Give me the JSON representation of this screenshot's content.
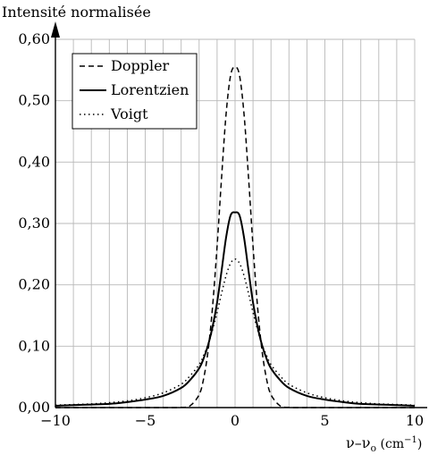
{
  "chart_data": {
    "type": "line",
    "ylabel": "Intensité normalisée",
    "xlabel": "ν–ν",
    "xlabel_sub": "o",
    "xlabel_unit": " (cm",
    "xlabel_exp": "−1",
    "xlabel_close": ")",
    "xlim": [
      -10,
      10
    ],
    "ylim": [
      0,
      0.6
    ],
    "xticks": [
      -10,
      -5,
      0,
      5,
      10
    ],
    "xtick_labels": [
      "−10",
      "−5",
      "0",
      "5",
      "10"
    ],
    "yticks": [
      0,
      0.1,
      0.2,
      0.3,
      0.4,
      0.5,
      0.6
    ],
    "ytick_labels": [
      "0,00",
      "0,10",
      "0,20",
      "0,30",
      "0,40",
      "0,50",
      "0,60"
    ],
    "grid": true,
    "legend_position": "top-left",
    "x": [
      -10,
      -9,
      -8,
      -7,
      -6,
      -5,
      -4,
      -3,
      -2.5,
      -2,
      -1.75,
      -1.5,
      -1.25,
      -1,
      -0.75,
      -0.5,
      -0.25,
      0,
      0.25,
      0.5,
      0.75,
      1,
      1.25,
      1.5,
      1.75,
      2,
      2.5,
      3,
      4,
      5,
      6,
      7,
      8,
      9,
      10
    ],
    "series": [
      {
        "name": "Doppler",
        "style": "dashed",
        "values": [
          0,
          0,
          0,
          0,
          0,
          0,
          0,
          0.0003,
          0.003,
          0.021,
          0.047,
          0.093,
          0.165,
          0.263,
          0.375,
          0.478,
          0.541,
          0.555,
          0.541,
          0.478,
          0.375,
          0.263,
          0.165,
          0.093,
          0.047,
          0.021,
          0.003,
          0.0003,
          0,
          0,
          0,
          0,
          0,
          0,
          0
        ]
      },
      {
        "name": "Lorentzien",
        "style": "solid",
        "values": [
          0.003,
          0.004,
          0.005,
          0.006,
          0.009,
          0.013,
          0.019,
          0.032,
          0.045,
          0.064,
          0.08,
          0.102,
          0.132,
          0.171,
          0.223,
          0.277,
          0.313,
          0.318,
          0.313,
          0.277,
          0.223,
          0.171,
          0.132,
          0.102,
          0.08,
          0.064,
          0.045,
          0.032,
          0.019,
          0.013,
          0.009,
          0.006,
          0.005,
          0.004,
          0.003
        ]
      },
      {
        "name": "Voigt",
        "style": "dotted",
        "values": [
          0.004,
          0.005,
          0.006,
          0.008,
          0.011,
          0.016,
          0.024,
          0.038,
          0.052,
          0.07,
          0.085,
          0.103,
          0.127,
          0.155,
          0.186,
          0.215,
          0.235,
          0.242,
          0.235,
          0.215,
          0.186,
          0.155,
          0.127,
          0.103,
          0.085,
          0.07,
          0.052,
          0.038,
          0.024,
          0.016,
          0.011,
          0.008,
          0.006,
          0.005,
          0.004
        ]
      }
    ]
  }
}
